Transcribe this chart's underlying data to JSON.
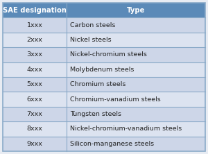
{
  "header": [
    "SAE designation",
    "Type"
  ],
  "rows": [
    [
      "1xxx",
      "Carbon steels"
    ],
    [
      "2xxx",
      "Nickel steels"
    ],
    [
      "3xxx",
      "Nickel-chromium steels"
    ],
    [
      "4xxx",
      "Molybdenum steels"
    ],
    [
      "5xxx",
      "Chromium steels"
    ],
    [
      "6xxx",
      "Chromium-vanadium steels"
    ],
    [
      "7xxx",
      "Tungsten steels"
    ],
    [
      "8xxx",
      "Nickel-chromium-vanadium steels"
    ],
    [
      "9xxx",
      "Silicon-manganese steels"
    ]
  ],
  "header_bg": "#5b8ab8",
  "header_text_color": "#ffffff",
  "row_bg_odd": "#cdd6e8",
  "row_bg_even": "#dce3f0",
  "border_color": "#8aaac8",
  "text_color": "#222222",
  "col_split": 0.315,
  "fig_bg": "#e8ecf3",
  "outer_border_color": "#8aaac8",
  "header_fontsize": 7.2,
  "row_fontsize": 6.8
}
